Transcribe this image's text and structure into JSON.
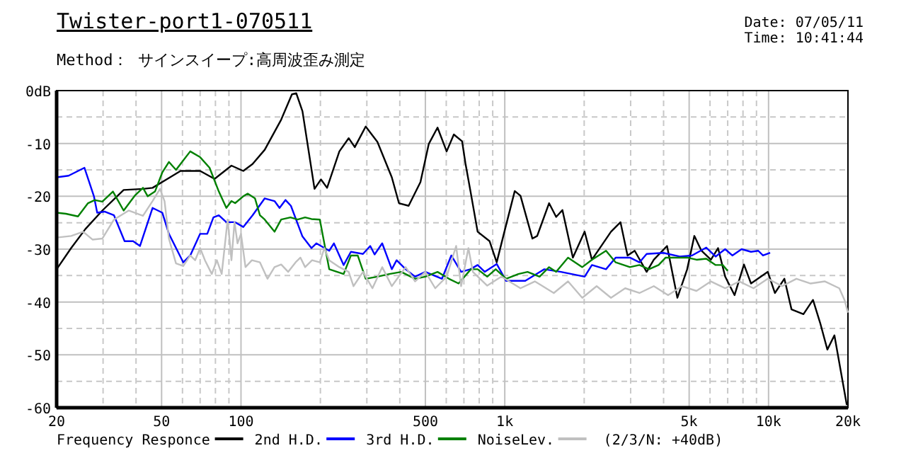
{
  "chart_data": {
    "type": "line",
    "title": "Twister-port1-070511",
    "subtitle": "Method： サインスイープ:高周波歪み測定",
    "annotations": [
      "Date: 07/05/11",
      "Time: 10:41:44",
      "(2/3/N: +40dB)"
    ],
    "log": "x",
    "grid": true,
    "legend": "bottom",
    "line_style": "solid",
    "xlim": [
      20,
      20000
    ],
    "xticks": [
      20,
      50,
      100,
      500,
      {
        "value": 1000,
        "label": "1k"
      },
      {
        "value": 5000,
        "label": "5k"
      },
      {
        "value": 10000,
        "label": "10k"
      },
      {
        "value": 20000,
        "label": "20k"
      }
    ],
    "ylim": [
      -60,
      0
    ],
    "yticks": [
      {
        "value": 0,
        "label": "0dB"
      },
      -10,
      -20,
      -30,
      -40,
      -50,
      -60
    ],
    "series": [
      {
        "name": "Frequency Responce",
        "color": "#000000",
        "x": [
          20,
          22.7,
          25.7,
          29.8,
          35.9,
          42.5,
          46.2,
          52.2,
          59,
          70,
          79.4,
          92,
          102,
          110.6,
          123,
          142,
          156,
          162,
          171,
          190,
          201,
          212,
          236,
          256,
          270,
          297,
          329,
          373,
          397,
          432,
          479,
          515,
          556,
          602,
          641,
          689,
          709,
          741,
          789,
          876,
          932,
          992,
          1091,
          1147,
          1273,
          1327,
          1472,
          1566,
          1654,
          1812,
          2008,
          2140,
          2527,
          2746,
          2920,
          3108,
          3450,
          3673,
          4122,
          4512,
          4915,
          5232,
          5566,
          6046,
          6434,
          6847,
          7433,
          8068,
          8580,
          9933,
          10570,
          11480,
          12220,
          13560,
          14740,
          15700,
          16710,
          17770,
          19800
        ],
        "values": [
          -33.8,
          -29.8,
          -26.2,
          -22.7,
          -18.8,
          -18.6,
          -18.4,
          -16.8,
          -15.2,
          -15.2,
          -16.7,
          -14.2,
          -15.2,
          -13.9,
          -11.2,
          -5.5,
          -0.7,
          -0.5,
          -3.9,
          -18.6,
          -16.8,
          -18.4,
          -11.5,
          -9,
          -10.7,
          -6.8,
          -9.7,
          -16.4,
          -21.3,
          -21.8,
          -17.3,
          -10.1,
          -7,
          -11.5,
          -8.3,
          -9.6,
          -13.7,
          -19,
          -26.7,
          -28.5,
          -32.5,
          -27.1,
          -19,
          -19.9,
          -28,
          -27.5,
          -21.3,
          -23.9,
          -22.6,
          -31.6,
          -26.7,
          -32,
          -26.7,
          -24.9,
          -31.2,
          -30.3,
          -34.3,
          -32,
          -29.4,
          -39.2,
          -33.8,
          -27.5,
          -30.3,
          -32,
          -29.8,
          -35.2,
          -38.7,
          -32.9,
          -36.5,
          -34.3,
          -38.3,
          -35.6,
          -41.4,
          -42.3,
          -39.6,
          -44,
          -49,
          -46.3,
          -59.5
        ]
      },
      {
        "name": "2nd H.D.",
        "color": "#0000ff",
        "x": [
          20,
          22.2,
          25.5,
          27.7,
          28.5,
          30.4,
          33,
          36.2,
          39,
          41.4,
          46.2,
          50.3,
          53.3,
          60.4,
          64.2,
          70,
          74.5,
          78.6,
          82.4,
          88,
          95,
          102,
          110.6,
          123,
          134,
          140,
          147.5,
          154.6,
          171,
          185,
          193,
          216,
          225,
          245,
          261,
          290,
          309,
          321,
          343,
          373,
          389,
          421,
          457,
          500,
          578,
          627,
          683,
          741,
          789,
          840,
          932,
          1012,
          1196,
          1412,
          1634,
          2008,
          2140,
          2420,
          2633,
          2981,
          3240,
          3450,
          3990,
          4605,
          5124,
          5806,
          6300,
          6847,
          7290,
          7905,
          8580,
          9140,
          9525,
          10140
        ],
        "values": [
          -16.4,
          -16.1,
          -14.6,
          -20,
          -23.1,
          -22.9,
          -23.6,
          -28.5,
          -28.5,
          -29.4,
          -22.2,
          -23.1,
          -27.1,
          -32.5,
          -31.2,
          -27.1,
          -27.1,
          -24,
          -23.6,
          -24.9,
          -24.9,
          -25.8,
          -23.6,
          -20.4,
          -20.9,
          -22.2,
          -20.7,
          -21.8,
          -27.6,
          -29.8,
          -28.9,
          -30.3,
          -28.9,
          -33,
          -30.5,
          -30.9,
          -29.4,
          -31,
          -28.9,
          -33.8,
          -32.1,
          -33.8,
          -35.2,
          -34.3,
          -35.6,
          -31.2,
          -34.3,
          -33.8,
          -33,
          -34.3,
          -32.8,
          -36,
          -36,
          -33.8,
          -34.3,
          -35.2,
          -33,
          -33.8,
          -31.6,
          -31.6,
          -32.5,
          -30.9,
          -30.7,
          -31.4,
          -31.2,
          -29.7,
          -31.4,
          -30,
          -31.2,
          -30,
          -30.5,
          -30.3,
          -31.2,
          -30.7
        ]
      },
      {
        "name": "3rd H.D.",
        "color": "#008000",
        "x": [
          20,
          21.7,
          24.1,
          26.3,
          27.9,
          29.8,
          32.7,
          35.9,
          39.7,
          42.5,
          44.3,
          47.2,
          50.3,
          53.3,
          56.7,
          64.2,
          70,
          76,
          82.4,
          88,
          92,
          95,
          102,
          106,
          113,
          118,
          123,
          134,
          142,
          154,
          164,
          175,
          185,
          199,
          216,
          245,
          261,
          277,
          297,
          329,
          365,
          405,
          457,
          500,
          556,
          614,
          668,
          744,
          789,
          858,
          924,
          1012,
          1126,
          1220,
          1355,
          1472,
          1566,
          1737,
          1967,
          2140,
          2420,
          2633,
          2981,
          3240,
          3520,
          3830,
          4074,
          4915,
          5332,
          5806,
          6300,
          6700,
          7000
        ],
        "values": [
          -23.1,
          -23.3,
          -23.8,
          -21.3,
          -20.7,
          -21,
          -19.1,
          -22.7,
          -19.8,
          -18.4,
          -20,
          -19.1,
          -15.5,
          -13.5,
          -15,
          -11.5,
          -12.6,
          -14.6,
          -19.1,
          -22.2,
          -20.9,
          -21.3,
          -20,
          -19.5,
          -20.4,
          -23.6,
          -24.4,
          -26.7,
          -24.4,
          -24,
          -24.4,
          -24,
          -24.3,
          -24.4,
          -33.8,
          -34.7,
          -31.2,
          -31.2,
          -35.6,
          -35.2,
          -34.7,
          -34.3,
          -35.6,
          -35.2,
          -34.3,
          -35.6,
          -36.5,
          -33.8,
          -33.8,
          -35.2,
          -33.8,
          -35.6,
          -34.7,
          -34.3,
          -35.2,
          -33.4,
          -34.3,
          -31.6,
          -33.4,
          -32,
          -30.3,
          -32.5,
          -33.4,
          -33,
          -33.8,
          -33,
          -31.6,
          -31.6,
          -32,
          -31.8,
          -33,
          -33,
          -34.1
        ]
      },
      {
        "name": "NoiseLev.",
        "color": "#c0c0c0",
        "x": [
          20,
          22.7,
          25.2,
          27.4,
          29.8,
          33,
          37.5,
          42.5,
          46.2,
          49.3,
          51.3,
          53.3,
          56.7,
          60.4,
          64.2,
          67,
          70,
          73,
          77.5,
          81,
          84.5,
          89,
          92,
          94.5,
          97,
          100,
          104,
          110,
          118,
          126,
          134,
          142,
          151,
          161,
          168,
          175,
          186,
          199,
          207,
          216,
          236,
          256,
          267,
          290,
          315,
          343,
          373,
          421,
          457,
          500,
          545,
          602,
          654,
          683,
          728,
          757,
          858,
          971,
          1147,
          1300,
          1534,
          1737,
          1967,
          2230,
          2527,
          2860,
          3240,
          3673,
          4160,
          4700,
          5330,
          6046,
          6847,
          7750,
          8770,
          9933,
          11260,
          12750,
          14440,
          16360,
          18540,
          19400,
          20000
        ],
        "values": [
          -27.8,
          -27.5,
          -26.7,
          -28.2,
          -28,
          -24.4,
          -22.7,
          -23.7,
          -20.9,
          -18.6,
          -20.9,
          -28,
          -32.7,
          -33.2,
          -31.2,
          -32.1,
          -29.8,
          -32.1,
          -34.7,
          -32.1,
          -34.7,
          -24.4,
          -32.1,
          -24.9,
          -28.9,
          -27.1,
          -33.4,
          -32.1,
          -32.5,
          -35.6,
          -33.4,
          -32.9,
          -34.3,
          -32.5,
          -31.6,
          -33.4,
          -32.1,
          -32.5,
          -29.8,
          -32.1,
          -33.4,
          -34.3,
          -37,
          -34.3,
          -37.4,
          -33.4,
          -37,
          -33.4,
          -36.1,
          -34.3,
          -37.4,
          -35.2,
          -29.4,
          -37,
          -29.8,
          -34.3,
          -36.9,
          -35.2,
          -37.4,
          -36.1,
          -38.3,
          -36.1,
          -39.2,
          -37,
          -39.2,
          -37.4,
          -38.3,
          -37,
          -38.7,
          -37,
          -37.9,
          -36.1,
          -37.4,
          -36.1,
          -37.4,
          -35.6,
          -37,
          -35.6,
          -36.5,
          -36.1,
          -37.4,
          -39.6,
          -42
        ]
      }
    ]
  }
}
